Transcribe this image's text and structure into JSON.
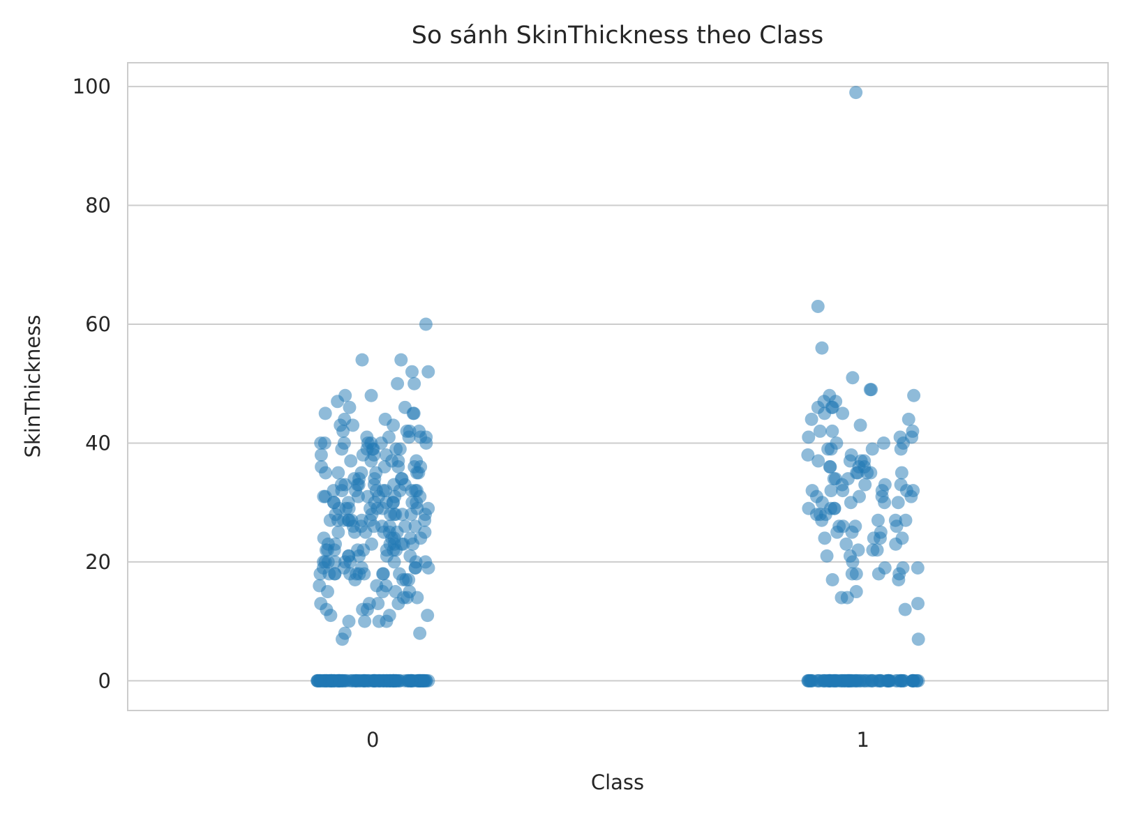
{
  "chart_data": {
    "type": "scatter",
    "subtype": "strip",
    "title": "So sánh SkinThickness theo Class",
    "xlabel": "Class",
    "ylabel": "SkinThickness",
    "categories": [
      "0",
      "1"
    ],
    "ylim": [
      -5,
      104
    ],
    "yticks": [
      0,
      20,
      40,
      60,
      80,
      100
    ],
    "grid": true,
    "legend": "none",
    "point_color": "#1f77b4",
    "point_alpha": 0.5,
    "groups": [
      {
        "category": "0",
        "values": [
          0,
          0,
          0,
          0,
          0,
          0,
          0,
          0,
          0,
          0,
          0,
          0,
          0,
          0,
          0,
          0,
          0,
          0,
          0,
          0,
          0,
          0,
          0,
          0,
          0,
          0,
          0,
          0,
          0,
          0,
          0,
          0,
          0,
          0,
          0,
          0,
          0,
          0,
          0,
          0,
          0,
          0,
          0,
          0,
          0,
          0,
          0,
          0,
          0,
          0,
          0,
          0,
          0,
          0,
          0,
          0,
          0,
          0,
          0,
          0,
          0,
          0,
          0,
          0,
          0,
          0,
          0,
          0,
          0,
          0,
          0,
          0,
          0,
          0,
          0,
          0,
          0,
          0,
          0,
          0,
          0,
          0,
          0,
          0,
          0,
          0,
          0,
          0,
          0,
          0,
          0,
          0,
          0,
          0,
          0,
          0,
          0,
          0,
          0,
          0,
          0,
          0,
          0,
          0,
          0,
          0,
          0,
          0,
          0,
          0,
          0,
          0,
          0,
          0,
          0,
          0,
          0,
          0,
          0,
          0,
          0,
          0,
          0,
          0,
          0,
          0,
          0,
          0,
          0,
          0,
          0,
          0,
          0,
          0,
          0,
          0,
          0,
          0,
          0,
          0,
          7,
          8,
          8,
          10,
          10,
          10,
          10,
          11,
          11,
          11,
          12,
          12,
          12,
          13,
          13,
          13,
          13,
          14,
          14,
          14,
          15,
          15,
          15,
          15,
          16,
          16,
          16,
          17,
          17,
          17,
          17,
          18,
          18,
          18,
          18,
          18,
          18,
          18,
          18,
          18,
          18,
          18,
          19,
          19,
          19,
          19,
          19,
          19,
          20,
          20,
          20,
          20,
          20,
          20,
          20,
          20,
          20,
          21,
          21,
          21,
          21,
          21,
          22,
          22,
          22,
          22,
          22,
          22,
          22,
          22,
          23,
          23,
          23,
          23,
          23,
          23,
          23,
          23,
          24,
          24,
          24,
          24,
          24,
          25,
          25,
          25,
          25,
          25,
          25,
          25,
          26,
          26,
          26,
          26,
          26,
          26,
          26,
          27,
          27,
          27,
          27,
          27,
          27,
          27,
          27,
          27,
          28,
          28,
          28,
          28,
          28,
          28,
          28,
          28,
          29,
          29,
          29,
          29,
          29,
          29,
          29,
          29,
          30,
          30,
          30,
          30,
          30,
          30,
          30,
          30,
          30,
          31,
          31,
          31,
          31,
          31,
          31,
          31,
          32,
          32,
          32,
          32,
          32,
          32,
          32,
          32,
          32,
          32,
          33,
          33,
          33,
          33,
          33,
          33,
          33,
          34,
          34,
          34,
          34,
          34,
          35,
          35,
          35,
          35,
          35,
          35,
          36,
          36,
          36,
          36,
          36,
          37,
          37,
          37,
          37,
          37,
          38,
          38,
          38,
          38,
          39,
          39,
          39,
          39,
          39,
          39,
          40,
          40,
          40,
          40,
          40,
          40,
          40,
          41,
          41,
          41,
          41,
          41,
          42,
          42,
          42,
          42,
          43,
          43,
          43,
          44,
          44,
          45,
          45,
          45,
          46,
          46,
          47,
          48,
          48,
          50,
          50,
          52,
          52,
          54,
          54,
          60
        ]
      },
      {
        "category": "1",
        "values": [
          0,
          0,
          0,
          0,
          0,
          0,
          0,
          0,
          0,
          0,
          0,
          0,
          0,
          0,
          0,
          0,
          0,
          0,
          0,
          0,
          0,
          0,
          0,
          0,
          0,
          0,
          0,
          0,
          0,
          0,
          0,
          0,
          0,
          0,
          0,
          0,
          0,
          0,
          0,
          0,
          0,
          0,
          0,
          0,
          0,
          0,
          0,
          0,
          0,
          0,
          0,
          0,
          0,
          0,
          0,
          0,
          0,
          0,
          0,
          0,
          0,
          0,
          0,
          0,
          0,
          0,
          0,
          0,
          0,
          0,
          0,
          0,
          0,
          0,
          0,
          0,
          0,
          0,
          0,
          0,
          0,
          0,
          0,
          0,
          0,
          0,
          0,
          0,
          7,
          12,
          13,
          14,
          14,
          15,
          17,
          17,
          18,
          18,
          18,
          18,
          19,
          19,
          19,
          20,
          21,
          21,
          22,
          22,
          22,
          23,
          23,
          24,
          24,
          24,
          24,
          25,
          25,
          25,
          26,
          26,
          26,
          26,
          27,
          27,
          27,
          27,
          28,
          28,
          28,
          29,
          29,
          29,
          29,
          30,
          30,
          30,
          30,
          31,
          31,
          31,
          31,
          32,
          32,
          32,
          32,
          32,
          32,
          33,
          33,
          33,
          33,
          34,
          34,
          34,
          35,
          35,
          35,
          35,
          35,
          36,
          36,
          36,
          36,
          37,
          37,
          37,
          37,
          38,
          38,
          39,
          39,
          39,
          39,
          40,
          40,
          40,
          41,
          41,
          41,
          42,
          42,
          42,
          43,
          44,
          44,
          45,
          45,
          46,
          46,
          46,
          47,
          47,
          48,
          48,
          49,
          49,
          51,
          56,
          63,
          99
        ]
      }
    ]
  }
}
